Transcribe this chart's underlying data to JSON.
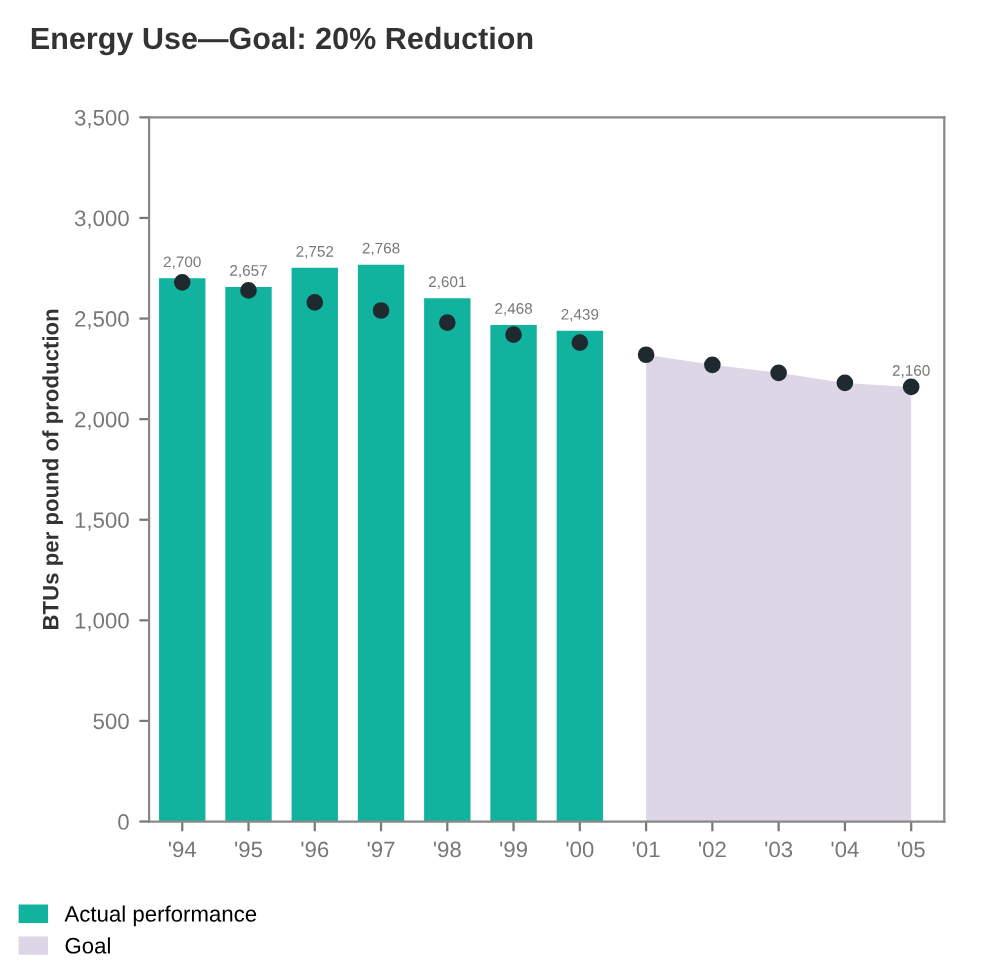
{
  "chart_data": {
    "type": "bar",
    "title": "Energy Use—Goal: 20% Reduction",
    "ylabel": "BTUs per pound of production",
    "categories": [
      "'94",
      "'95",
      "'96",
      "'97",
      "'98",
      "'99",
      "'00",
      "'01",
      "'02",
      "'03",
      "'04",
      "'05"
    ],
    "series": [
      {
        "name": "Goal",
        "type": "area",
        "color": "#ddd6e6",
        "values": [
          null,
          null,
          null,
          null,
          null,
          null,
          null,
          2320,
          2270,
          2230,
          2180,
          2160
        ]
      },
      {
        "type": "scatter",
        "marker": "circle",
        "color": "#1f2a30",
        "values": [
          2680,
          2640,
          2580,
          2540,
          2480,
          2420,
          2380,
          2320,
          2270,
          2230,
          2180,
          2160
        ],
        "value_labels": [
          null,
          null,
          null,
          null,
          null,
          null,
          null,
          null,
          null,
          null,
          null,
          "2,160"
        ]
      },
      {
        "name": "Actual performance",
        "color": "#12b39e",
        "values": [
          2700,
          2657,
          2752,
          2768,
          2601,
          2468,
          2439,
          null,
          null,
          null,
          null,
          null
        ],
        "value_labels": [
          "2,700",
          "2,657",
          "2,752",
          "2,768",
          "2,601",
          "2,468",
          "2,439",
          null,
          null,
          null,
          null,
          null
        ]
      }
    ],
    "ylim": [
      0,
      3500
    ],
    "yticks": [
      0,
      500,
      {
        "value": 1000,
        "label": "1,000"
      },
      {
        "value": 1500,
        "label": "1,500"
      },
      {
        "value": 2000,
        "label": "2,000"
      },
      {
        "value": 2500,
        "label": "2,500"
      },
      {
        "value": 3000,
        "label": "3,000"
      },
      {
        "value": 3500,
        "label": "3,500"
      }
    ],
    "grid": false,
    "legend": "bottom left"
  }
}
